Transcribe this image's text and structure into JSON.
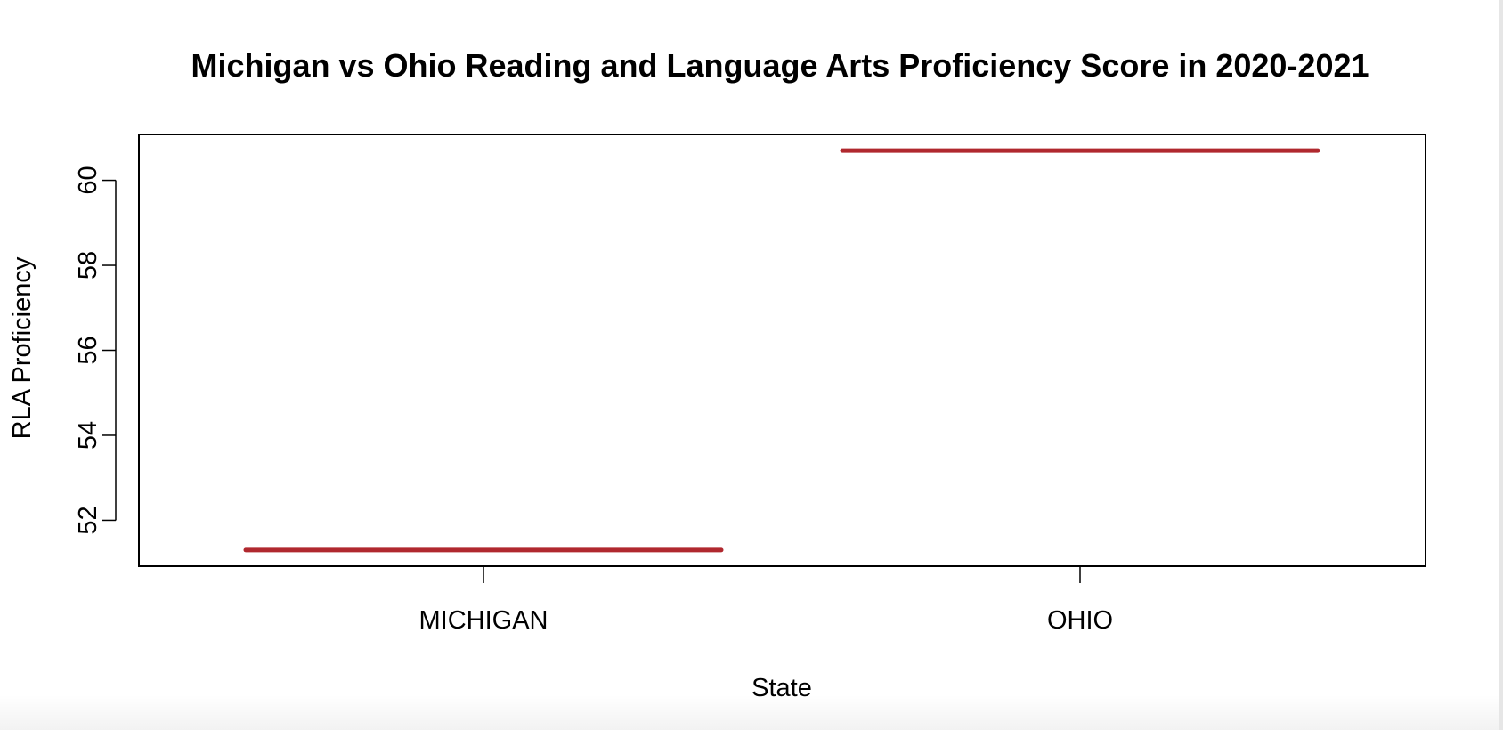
{
  "chart_data": {
    "type": "boxplot",
    "title": "Michigan vs Ohio Reading and Language Arts Proficiency Score in 2020-2021",
    "xlabel": "State",
    "ylabel": "RLA Proficiency",
    "categories": [
      "MICHIGAN",
      "OHIO"
    ],
    "values": [
      51.3,
      60.7
    ],
    "yticks": [
      "52",
      "54",
      "56",
      "58",
      "60"
    ],
    "ylim": [
      50.92,
      61.08
    ],
    "line_color": "#b0282e",
    "grid": false,
    "legend": "none"
  }
}
